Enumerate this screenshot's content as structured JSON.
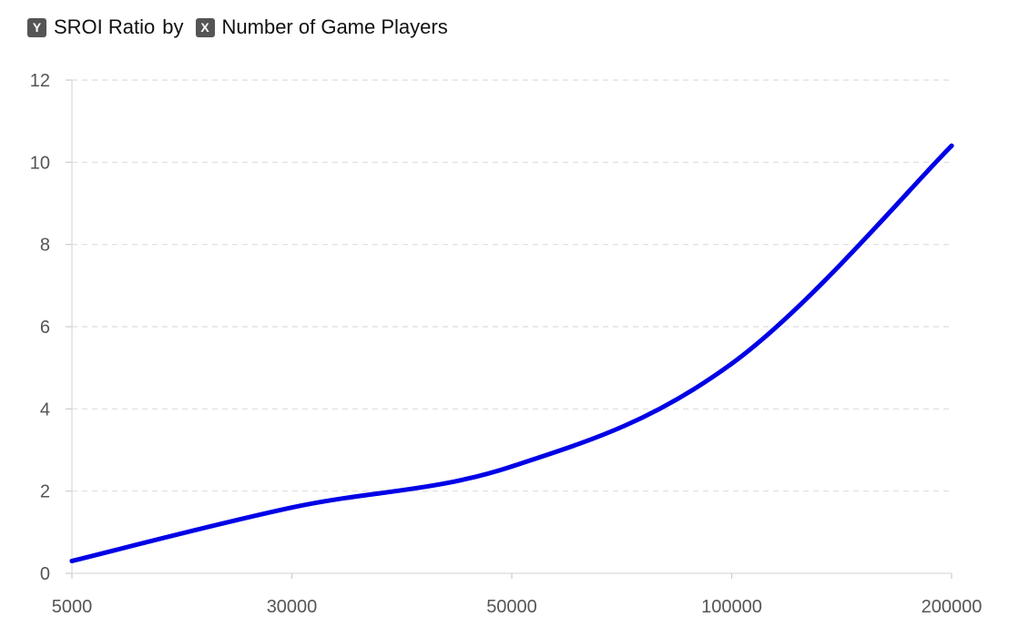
{
  "header": {
    "y_badge": "Y",
    "y_field": "SROI Ratio",
    "connector": "by",
    "x_badge": "X",
    "x_field": "Number of Game Players"
  },
  "chart_data": {
    "type": "line",
    "title": "",
    "xlabel": "",
    "ylabel": "",
    "x": [
      "5000",
      "30000",
      "50000",
      "100000",
      "200000"
    ],
    "series": [
      {
        "values": [
          0.3,
          1.6,
          2.6,
          5.1,
          10.4
        ],
        "color": "#0000e6"
      }
    ],
    "ylim": [
      0,
      12
    ],
    "yticks": [
      0,
      2,
      4,
      6,
      8,
      10,
      12
    ],
    "grid": true,
    "gridline_style": "dashed"
  }
}
